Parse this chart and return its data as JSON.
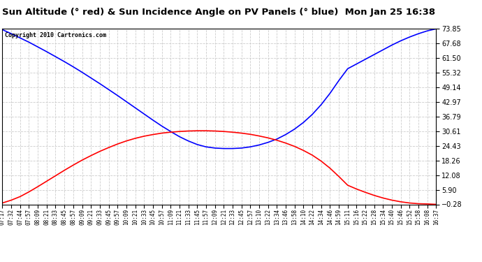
{
  "title": "Sun Altitude (° red) & Sun Incidence Angle on PV Panels (° blue)  Mon Jan 25 16:38",
  "copyright": "Copyright 2010 Cartronics.com",
  "ymin": -0.28,
  "ymax": 73.85,
  "yticks": [
    73.85,
    67.68,
    61.5,
    55.32,
    49.14,
    42.97,
    36.79,
    30.61,
    24.43,
    18.26,
    12.08,
    5.9,
    -0.28
  ],
  "background_color": "#ffffff",
  "grid_color": "#cccccc",
  "title_fontsize": 9.5,
  "x_labels": [
    "07:17",
    "07:32",
    "07:44",
    "07:57",
    "08:09",
    "08:21",
    "08:33",
    "08:45",
    "08:57",
    "09:09",
    "09:21",
    "09:33",
    "09:45",
    "09:57",
    "10:09",
    "10:21",
    "10:33",
    "10:45",
    "10:57",
    "11:09",
    "11:21",
    "11:33",
    "11:45",
    "11:57",
    "12:09",
    "12:21",
    "12:33",
    "12:45",
    "12:57",
    "13:10",
    "13:22",
    "13:34",
    "13:46",
    "13:58",
    "14:10",
    "14:22",
    "14:34",
    "14:46",
    "14:59",
    "15:11",
    "15:16",
    "15:22",
    "15:28",
    "15:34",
    "15:40",
    "15:46",
    "15:52",
    "15:58",
    "16:08",
    "16:37"
  ],
  "blue_y": [
    73.5,
    71.8,
    70.0,
    68.2,
    66.2,
    64.2,
    62.1,
    60.0,
    57.8,
    55.5,
    53.1,
    50.7,
    48.2,
    45.7,
    43.1,
    40.5,
    37.9,
    35.3,
    32.8,
    30.5,
    28.3,
    26.5,
    25.0,
    24.0,
    23.5,
    23.3,
    23.3,
    23.5,
    24.0,
    24.8,
    25.9,
    27.3,
    29.2,
    31.5,
    34.3,
    37.7,
    41.8,
    46.6,
    52.0,
    57.0,
    59.0,
    61.0,
    63.0,
    65.0,
    67.0,
    68.8,
    70.4,
    71.8,
    73.0,
    73.85
  ],
  "red_y": [
    0.3,
    1.5,
    3.0,
    5.0,
    7.2,
    9.5,
    11.8,
    14.1,
    16.3,
    18.4,
    20.3,
    22.1,
    23.7,
    25.2,
    26.5,
    27.6,
    28.5,
    29.2,
    29.8,
    30.2,
    30.5,
    30.7,
    30.8,
    30.8,
    30.7,
    30.5,
    30.2,
    29.8,
    29.3,
    28.6,
    27.8,
    26.8,
    25.6,
    24.2,
    22.5,
    20.5,
    18.0,
    15.0,
    11.5,
    7.8,
    6.2,
    4.8,
    3.5,
    2.4,
    1.5,
    0.8,
    0.3,
    0.0,
    -0.1,
    -0.28
  ]
}
